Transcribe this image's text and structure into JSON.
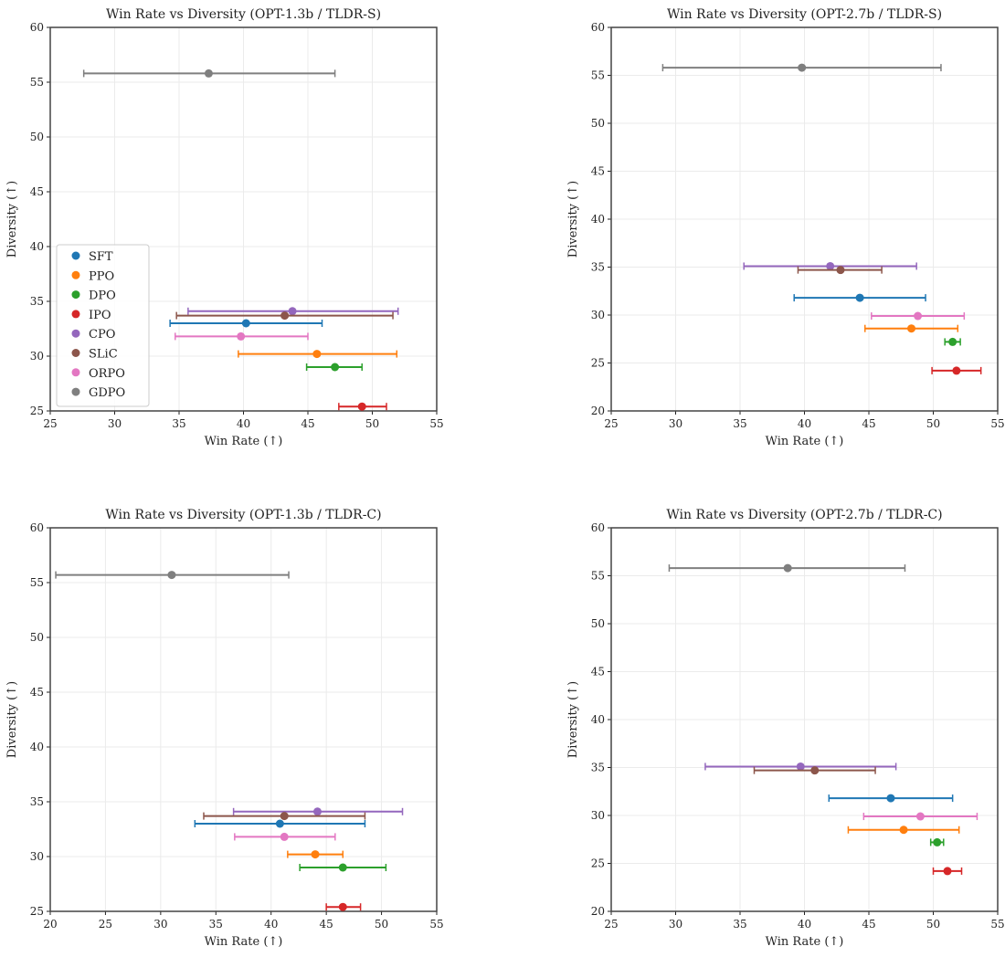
{
  "chart_data": [
    {
      "type": "scatter",
      "title": "Win Rate vs Diversity (OPT-1.3b / TLDR-S)",
      "xlabel": "Win Rate (↑)",
      "ylabel": "Diversity (↑)",
      "xlim": [
        25,
        55
      ],
      "ylim": [
        25,
        60
      ],
      "xticks": [
        25,
        30,
        35,
        40,
        45,
        50,
        55
      ],
      "yticks": [
        25,
        30,
        35,
        40,
        45,
        50,
        55,
        60
      ],
      "grid": true,
      "legend": "lower-left",
      "series": [
        {
          "name": "SFT",
          "x": 40.2,
          "xerr": [
            34.3,
            46.1
          ],
          "y": 33.0
        },
        {
          "name": "PPO",
          "x": 45.7,
          "xerr": [
            39.6,
            51.9
          ],
          "y": 30.2
        },
        {
          "name": "DPO",
          "x": 47.1,
          "xerr": [
            44.9,
            49.2
          ],
          "y": 29.0
        },
        {
          "name": "IPO",
          "x": 49.2,
          "xerr": [
            47.4,
            51.1
          ],
          "y": 25.4
        },
        {
          "name": "CPO",
          "x": 43.8,
          "xerr": [
            35.7,
            52.0
          ],
          "y": 34.1
        },
        {
          "name": "SLiC",
          "x": 43.2,
          "xerr": [
            34.8,
            51.6
          ],
          "y": 33.7
        },
        {
          "name": "ORPO",
          "x": 39.8,
          "xerr": [
            34.7,
            45.0
          ],
          "y": 31.8
        },
        {
          "name": "GDPO",
          "x": 37.3,
          "xerr": [
            27.6,
            47.1
          ],
          "y": 55.8
        }
      ]
    },
    {
      "type": "scatter",
      "title": "Win Rate vs Diversity (OPT-2.7b / TLDR-S)",
      "xlabel": "Win Rate (↑)",
      "ylabel": "Diversity (↑)",
      "xlim": [
        25,
        55
      ],
      "ylim": [
        20,
        60
      ],
      "xticks": [
        25,
        30,
        35,
        40,
        45,
        50,
        55
      ],
      "yticks": [
        20,
        25,
        30,
        35,
        40,
        45,
        50,
        55,
        60
      ],
      "grid": true,
      "series": [
        {
          "name": "SFT",
          "x": 44.3,
          "xerr": [
            39.2,
            49.4
          ],
          "y": 31.8
        },
        {
          "name": "PPO",
          "x": 48.3,
          "xerr": [
            44.7,
            51.9
          ],
          "y": 28.6
        },
        {
          "name": "DPO",
          "x": 51.5,
          "xerr": [
            50.9,
            52.1
          ],
          "y": 27.2
        },
        {
          "name": "IPO",
          "x": 51.8,
          "xerr": [
            49.9,
            53.7
          ],
          "y": 24.2
        },
        {
          "name": "CPO",
          "x": 42.0,
          "xerr": [
            35.3,
            48.7
          ],
          "y": 35.1
        },
        {
          "name": "SLiC",
          "x": 42.8,
          "xerr": [
            39.5,
            46.0
          ],
          "y": 34.7
        },
        {
          "name": "ORPO",
          "x": 48.8,
          "xerr": [
            45.2,
            52.4
          ],
          "y": 29.9
        },
        {
          "name": "GDPO",
          "x": 39.8,
          "xerr": [
            29.0,
            50.6
          ],
          "y": 55.8
        }
      ]
    },
    {
      "type": "scatter",
      "title": "Win Rate vs Diversity (OPT-1.3b / TLDR-C)",
      "xlabel": "Win Rate (↑)",
      "ylabel": "Diversity (↑)",
      "xlim": [
        20,
        55
      ],
      "ylim": [
        25,
        60
      ],
      "xticks": [
        20,
        25,
        30,
        35,
        40,
        45,
        50,
        55
      ],
      "yticks": [
        25,
        30,
        35,
        40,
        45,
        50,
        55,
        60
      ],
      "grid": true,
      "series": [
        {
          "name": "SFT",
          "x": 40.8,
          "xerr": [
            33.1,
            48.5
          ],
          "y": 33.0
        },
        {
          "name": "PPO",
          "x": 44.0,
          "xerr": [
            41.5,
            46.5
          ],
          "y": 30.2
        },
        {
          "name": "DPO",
          "x": 46.5,
          "xerr": [
            42.6,
            50.4
          ],
          "y": 29.0
        },
        {
          "name": "IPO",
          "x": 46.5,
          "xerr": [
            45.0,
            48.1
          ],
          "y": 25.4
        },
        {
          "name": "CPO",
          "x": 44.2,
          "xerr": [
            36.6,
            51.9
          ],
          "y": 34.1
        },
        {
          "name": "SLiC",
          "x": 41.2,
          "xerr": [
            33.9,
            48.5
          ],
          "y": 33.7
        },
        {
          "name": "ORPO",
          "x": 41.2,
          "xerr": [
            36.7,
            45.8
          ],
          "y": 31.8
        },
        {
          "name": "GDPO",
          "x": 31.0,
          "xerr": [
            20.5,
            41.6
          ],
          "y": 55.7
        }
      ]
    },
    {
      "type": "scatter",
      "title": "Win Rate vs Diversity (OPT-2.7b / TLDR-C)",
      "xlabel": "Win Rate (↑)",
      "ylabel": "Diversity (↑)",
      "xlim": [
        25,
        55
      ],
      "ylim": [
        20,
        60
      ],
      "xticks": [
        25,
        30,
        35,
        40,
        45,
        50,
        55
      ],
      "yticks": [
        20,
        25,
        30,
        35,
        40,
        45,
        50,
        55,
        60
      ],
      "grid": true,
      "series": [
        {
          "name": "SFT",
          "x": 46.7,
          "xerr": [
            41.9,
            51.5
          ],
          "y": 31.8
        },
        {
          "name": "PPO",
          "x": 47.7,
          "xerr": [
            43.4,
            52.0
          ],
          "y": 28.5
        },
        {
          "name": "DPO",
          "x": 50.3,
          "xerr": [
            49.8,
            50.8
          ],
          "y": 27.2
        },
        {
          "name": "IPO",
          "x": 51.1,
          "xerr": [
            50.0,
            52.2
          ],
          "y": 24.2
        },
        {
          "name": "CPO",
          "x": 39.7,
          "xerr": [
            32.3,
            47.1
          ],
          "y": 35.1
        },
        {
          "name": "SLiC",
          "x": 40.8,
          "xerr": [
            36.1,
            45.5
          ],
          "y": 34.7
        },
        {
          "name": "ORPO",
          "x": 49.0,
          "xerr": [
            44.6,
            53.4
          ],
          "y": 29.9
        },
        {
          "name": "GDPO",
          "x": 38.7,
          "xerr": [
            29.5,
            47.8
          ],
          "y": 55.8
        }
      ]
    }
  ],
  "colors": {
    "SFT": "#1f77b4",
    "PPO": "#ff7f0e",
    "DPO": "#2ca02c",
    "IPO": "#d62728",
    "CPO": "#9467bd",
    "SLiC": "#8c564b",
    "ORPO": "#e377c2",
    "GDPO": "#7f7f7f"
  }
}
